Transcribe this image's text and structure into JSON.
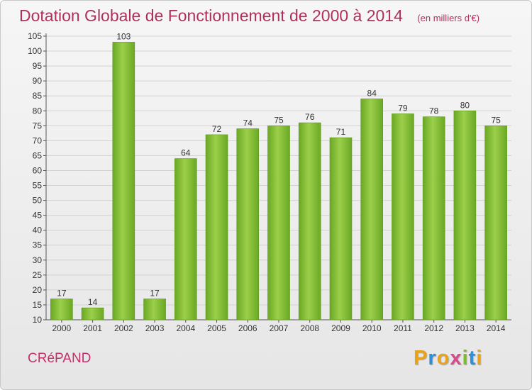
{
  "chart_data": {
    "type": "bar",
    "title": "Dotation Globale de Fonctionnement de 2000 à 2014",
    "subtitle": "(en milliers d'€)",
    "categories": [
      "2000",
      "2001",
      "2002",
      "2003",
      "2004",
      "2005",
      "2006",
      "2007",
      "2008",
      "2009",
      "2010",
      "2011",
      "2012",
      "2013",
      "2014"
    ],
    "values": [
      17,
      14,
      103,
      17,
      64,
      72,
      74,
      75,
      76,
      71,
      84,
      79,
      78,
      80,
      75
    ],
    "ylim": [
      10,
      105
    ],
    "yticks": [
      10,
      15,
      20,
      25,
      30,
      35,
      40,
      45,
      50,
      55,
      60,
      65,
      70,
      75,
      80,
      85,
      90,
      95,
      100,
      105
    ],
    "grid": true,
    "bar_color": "#7dbb2f",
    "xlabel": "",
    "ylabel": ""
  },
  "footer": {
    "commune": "CRéPAND",
    "logo_letters": [
      "P",
      "r",
      "o",
      "x",
      "i",
      "t",
      "i"
    ],
    "logo_colors": [
      "#e8a21c",
      "#2f8fd6",
      "#e8a21c",
      "#d84a8c",
      "#7dbb2f",
      "#2f8fd6",
      "#e8a21c"
    ]
  }
}
